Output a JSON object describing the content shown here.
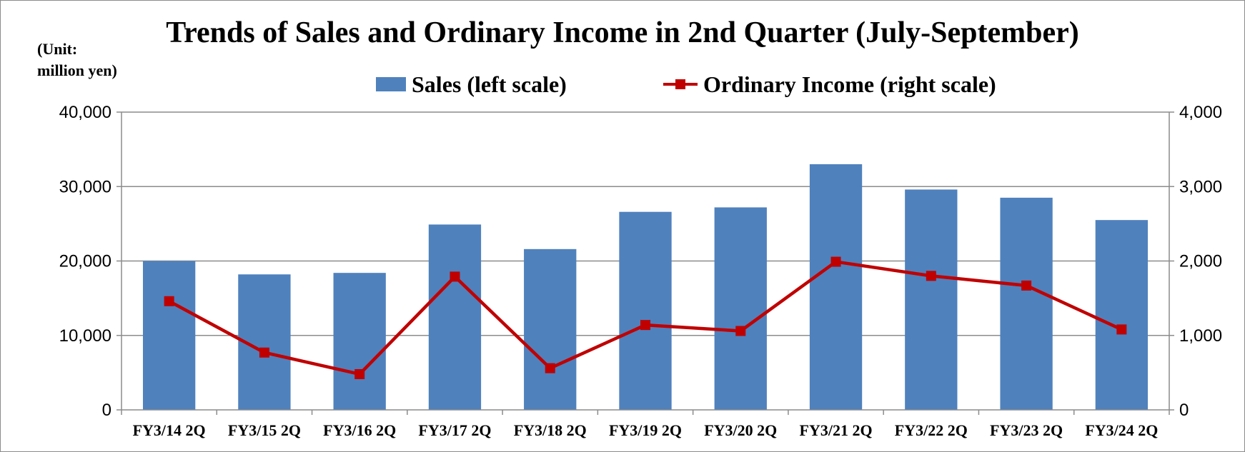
{
  "chart_data": {
    "type": "bar",
    "title": "Trends of Sales and Ordinary Income in 2nd Quarter (July-September)",
    "unit_label_line1": "(Unit:",
    "unit_label_line2": "million yen)",
    "categories": [
      "FY3/14 2Q",
      "FY3/15 2Q",
      "FY3/16 2Q",
      "FY3/17 2Q",
      "FY3/18 2Q",
      "FY3/19 2Q",
      "FY3/20 2Q",
      "FY3/21 2Q",
      "FY3/22 2Q",
      "FY3/23 2Q",
      "FY3/24 2Q"
    ],
    "series": [
      {
        "name": "Sales (left scale)",
        "type": "bar",
        "axis": "left",
        "color": "#4f81bd",
        "values": [
          20000,
          18200,
          18400,
          24900,
          21600,
          26600,
          27200,
          33000,
          29600,
          28500,
          25500
        ]
      },
      {
        "name": "Ordinary Income (right scale)",
        "type": "line",
        "axis": "right",
        "color": "#c00000",
        "values": [
          1460,
          770,
          480,
          1790,
          560,
          1140,
          1060,
          1990,
          1800,
          1670,
          1080
        ]
      }
    ],
    "left_axis": {
      "ylim": [
        0,
        40000
      ],
      "ticks": [
        "0",
        "10,000",
        "20,000",
        "30,000",
        "40,000"
      ]
    },
    "right_axis": {
      "ylim": [
        0,
        4000
      ],
      "ticks": [
        "0",
        "1,000",
        "2,000",
        "3,000",
        "4,000"
      ]
    },
    "grid": true,
    "legend_position": "top"
  }
}
